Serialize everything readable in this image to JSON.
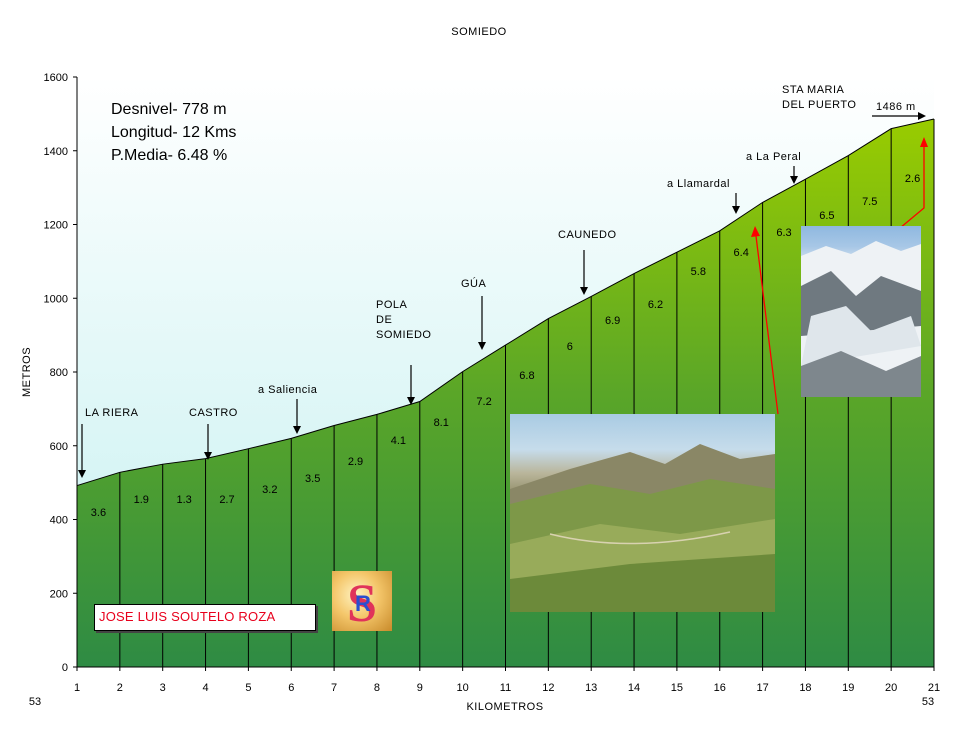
{
  "chart_data": {
    "type": "area",
    "title": "SOMIEDO",
    "xlabel": "KILOMETROS",
    "ylabel": "METROS",
    "ylim": [
      0,
      1600
    ],
    "xlim": [
      1,
      21
    ],
    "yticks": [
      "0",
      "200",
      "400",
      "600",
      "800",
      "1000",
      "1200",
      "1400",
      "1600"
    ],
    "xticks": [
      "1",
      "2",
      "3",
      "4",
      "5",
      "6",
      "7",
      "8",
      "9",
      "10",
      "11",
      "12",
      "13",
      "14",
      "15",
      "16",
      "17",
      "18",
      "19",
      "20",
      "21"
    ],
    "corner_left": "53",
    "corner_right": "53",
    "x": [
      1,
      2,
      3,
      4,
      5,
      6,
      7,
      8,
      9,
      10,
      11,
      12,
      13,
      14,
      15,
      16,
      17,
      18,
      19,
      20,
      21
    ],
    "elevation": [
      492,
      528,
      550,
      565,
      592,
      620,
      655,
      685,
      720,
      801,
      873,
      945,
      1005,
      1067,
      1125,
      1183,
      1260,
      1323,
      1387,
      1460,
      1486
    ],
    "gradients": [
      "3.6",
      "1.9",
      "1.3",
      "2.7",
      "3.2",
      "3.5",
      "2.9",
      "4.1",
      "8.1",
      "7.2",
      "6.8",
      "6",
      "6.9",
      "6.2",
      "5.8",
      "6.4",
      "6.3",
      "6.5",
      "7.5",
      "2.6"
    ],
    "stats": [
      "Desnivel- 778 m",
      "Longitud- 12 Kms",
      "P.Media- 6.48 %"
    ],
    "places": [
      {
        "lines": [
          "LA RIERA"
        ]
      },
      {
        "lines": [
          "CASTRO"
        ]
      },
      {
        "lines": [
          "a Saliencia"
        ]
      },
      {
        "lines": [
          "POLA",
          "DE",
          "SOMIEDO"
        ]
      },
      {
        "lines": [
          "GÚA"
        ]
      },
      {
        "lines": [
          "CAUNEDO"
        ]
      },
      {
        "lines": [
          "a Llamardal"
        ]
      },
      {
        "lines": [
          "a La Peral"
        ]
      },
      {
        "lines": [
          "STA MARIA",
          "DEL PUERTO"
        ]
      }
    ],
    "summit_label": "1486 m",
    "colors": {
      "fill_top": "#99cc00",
      "fill_bottom": "#2e8b44",
      "sky_top": "#ffffff",
      "sky_bottom": "#c4f0f0",
      "arrow_red": "#ff0000"
    }
  },
  "author": "JOSE LUIS SOUTELO ROZA",
  "logo_letters": "SR"
}
